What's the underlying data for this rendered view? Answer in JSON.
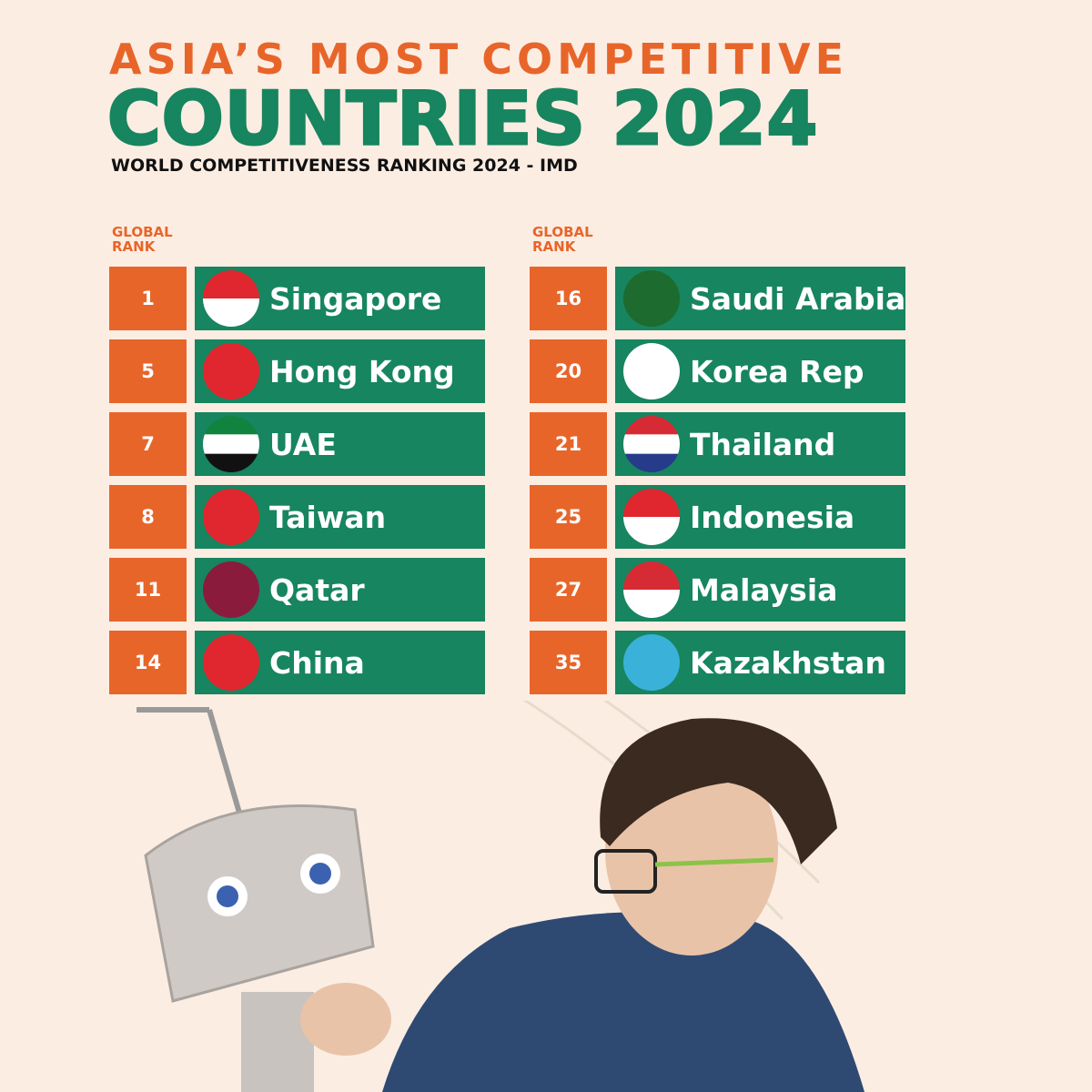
{
  "header": {
    "title_line1": "ASIA’S MOST COMPETITIVE",
    "title_line2": "COUNTRIES 2024",
    "subtitle": "WORLD COMPETITIVENESS RANKING 2024 - IMD"
  },
  "columns": [
    {
      "header_lines": [
        "GLOBAL",
        "RANK"
      ],
      "rows": [
        {
          "rank": 1,
          "country": "Singapore"
        },
        {
          "rank": 5,
          "country": "Hong Kong"
        },
        {
          "rank": 7,
          "country": "UAE"
        },
        {
          "rank": 8,
          "country": "Taiwan"
        },
        {
          "rank": 11,
          "country": "Qatar"
        },
        {
          "rank": 14,
          "country": "China"
        }
      ]
    },
    {
      "header_lines": [
        "GLOBAL",
        "RANK"
      ],
      "rows": [
        {
          "rank": 16,
          "country": "Saudi Arabia"
        },
        {
          "rank": 20,
          "country": "Korea Rep"
        },
        {
          "rank": 21,
          "country": "Thailand"
        },
        {
          "rank": 25,
          "country": "Indonesia"
        },
        {
          "rank": 27,
          "country": "Malaysia"
        },
        {
          "rank": 35,
          "country": "Kazakhstan"
        }
      ]
    }
  ]
}
